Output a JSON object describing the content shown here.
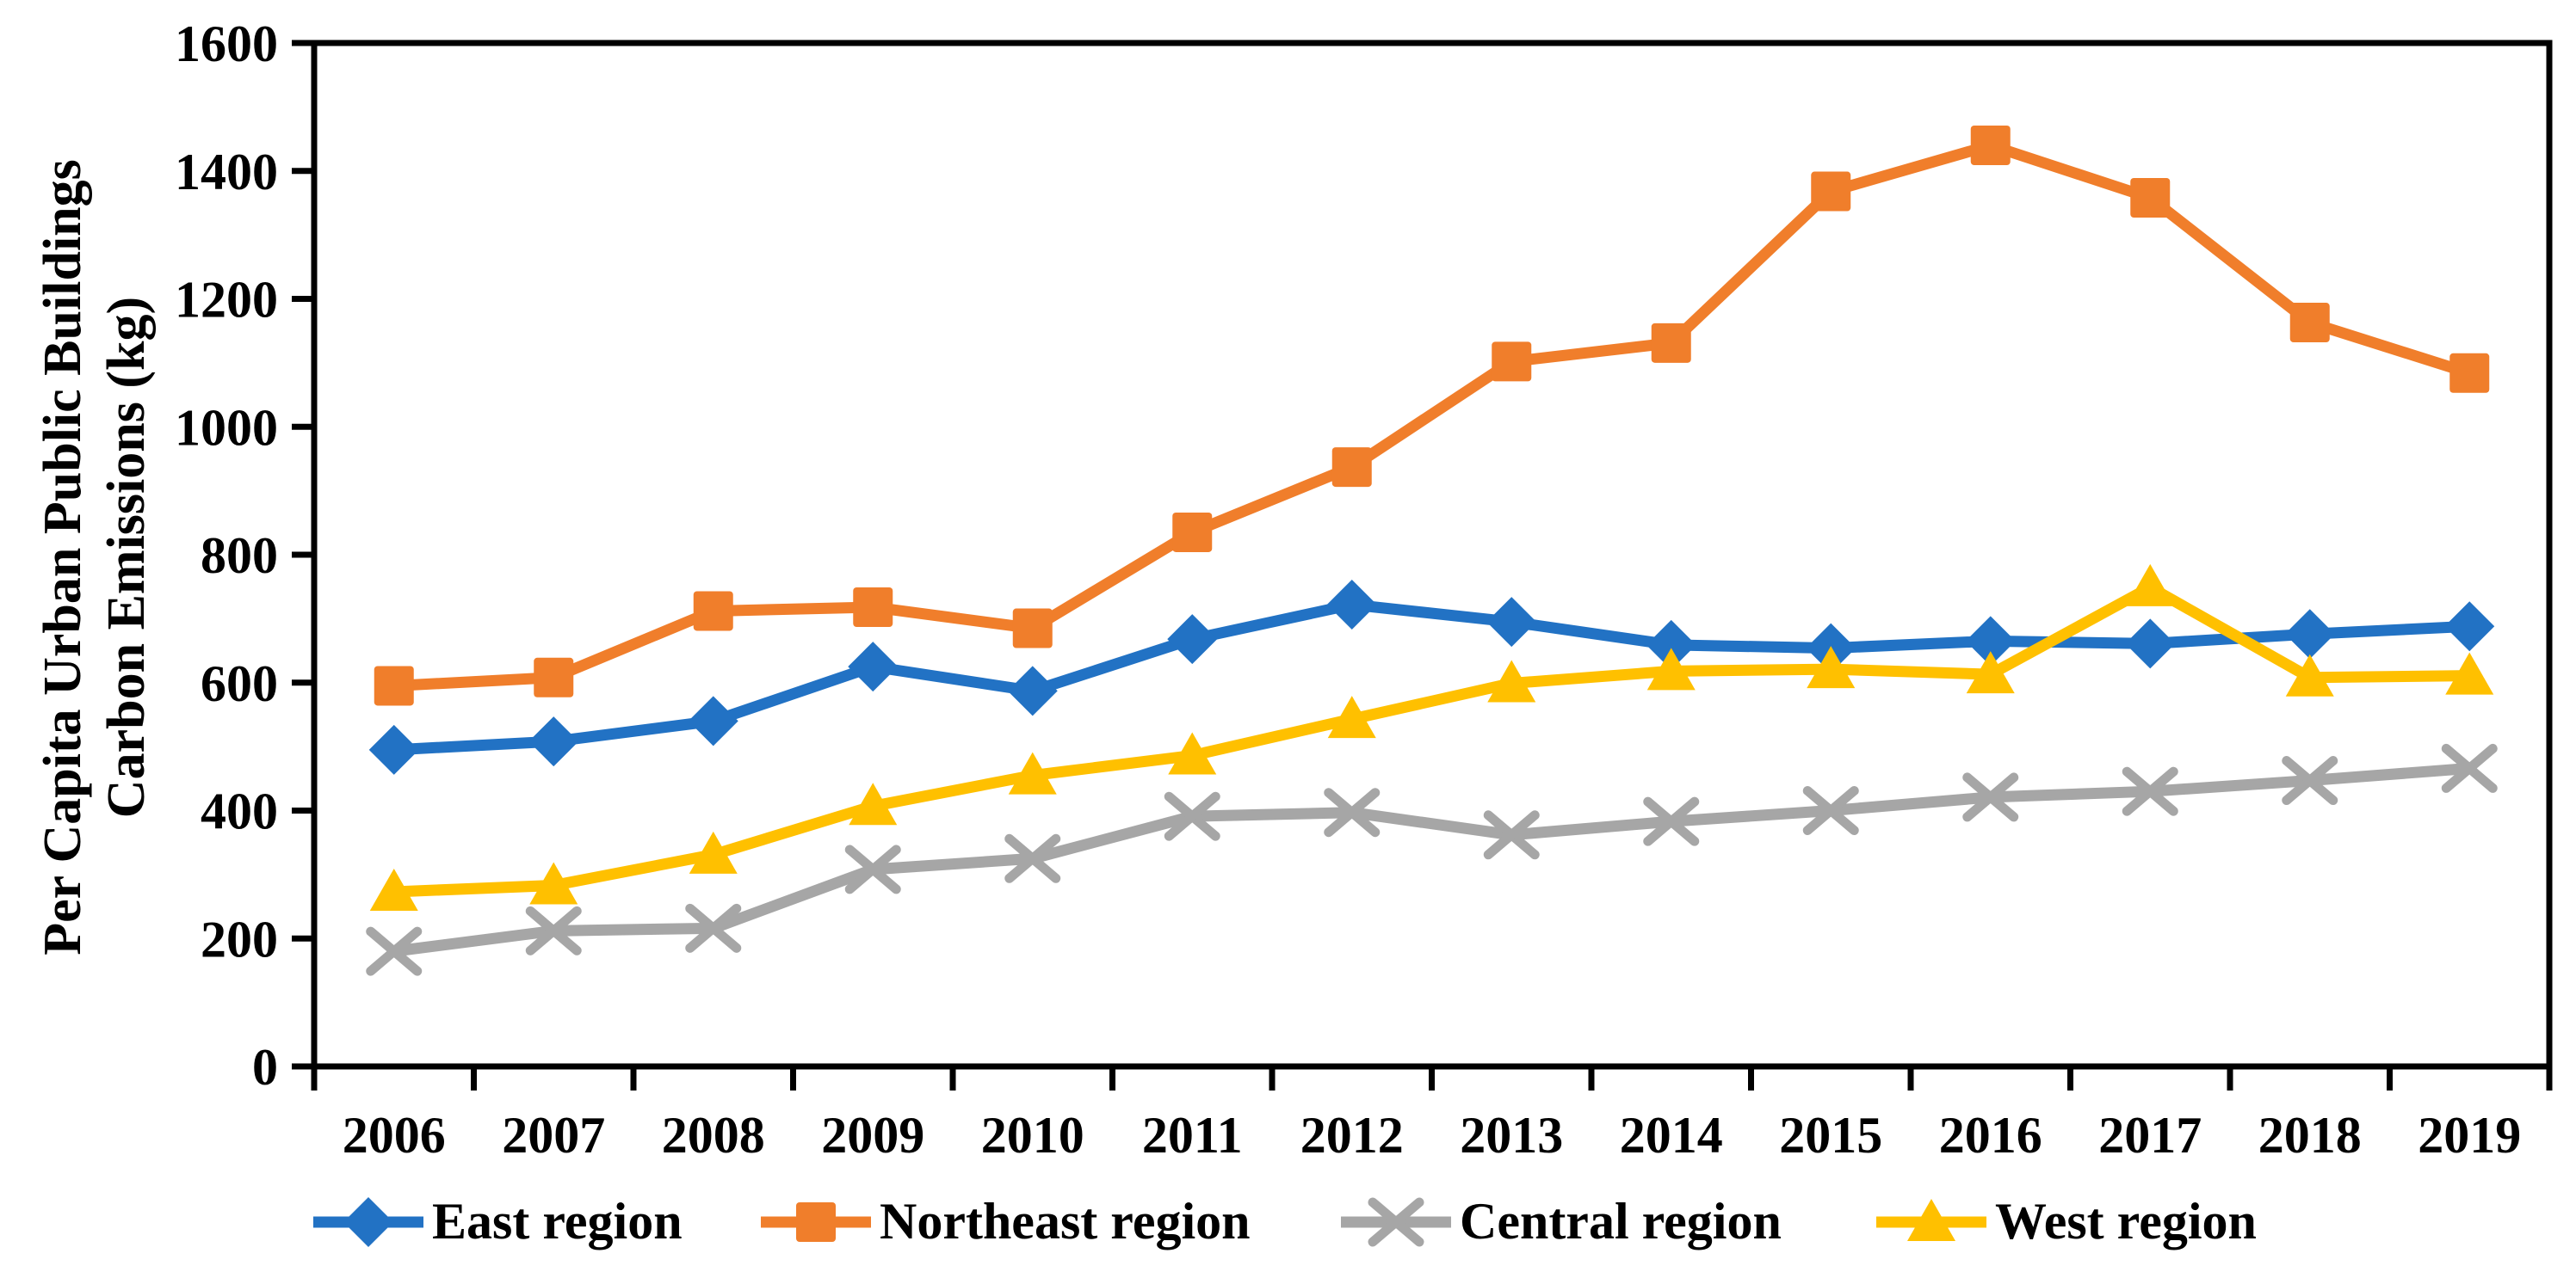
{
  "background": "#FFFFFF",
  "axis_color": "#000000",
  "chart_data": {
    "type": "line",
    "title": "",
    "xlabel": "",
    "ylabel": "Per Capita Urban Public Buildings Carbon Emissions (kg)",
    "ylabel_line1": "Per Capita Urban Public Buildings",
    "ylabel_line2": "Carbon Emissions (kg)",
    "ylim": [
      0,
      1600
    ],
    "yticks": [
      0,
      200,
      400,
      600,
      800,
      1000,
      1200,
      1400,
      1600
    ],
    "grid": false,
    "legend_position": "bottom",
    "categories": [
      "2006",
      "2007",
      "2008",
      "2009",
      "2010",
      "2011",
      "2012",
      "2013",
      "2014",
      "2015",
      "2016",
      "2017",
      "2018",
      "2019"
    ],
    "series": [
      {
        "name": "East region",
        "color": "#2272C4",
        "marker": "diamond",
        "values": [
          495,
          508,
          540,
          625,
          587,
          668,
          722,
          695,
          659,
          654,
          665,
          661,
          676,
          688
        ]
      },
      {
        "name": "Northeast region",
        "color": "#F07E2B",
        "marker": "square",
        "values": [
          595,
          608,
          712,
          718,
          685,
          835,
          937,
          1102,
          1131,
          1368,
          1440,
          1358,
          1163,
          1084
        ]
      },
      {
        "name": "Central region",
        "color": "#A6A6A6",
        "marker": "x",
        "values": [
          180,
          212,
          216,
          308,
          325,
          391,
          397,
          362,
          383,
          400,
          421,
          430,
          447,
          466
        ]
      },
      {
        "name": "West region",
        "color": "#FFC000",
        "marker": "triangle",
        "values": [
          273,
          283,
          331,
          407,
          455,
          486,
          543,
          599,
          618,
          621,
          613,
          749,
          608,
          611
        ]
      }
    ]
  }
}
